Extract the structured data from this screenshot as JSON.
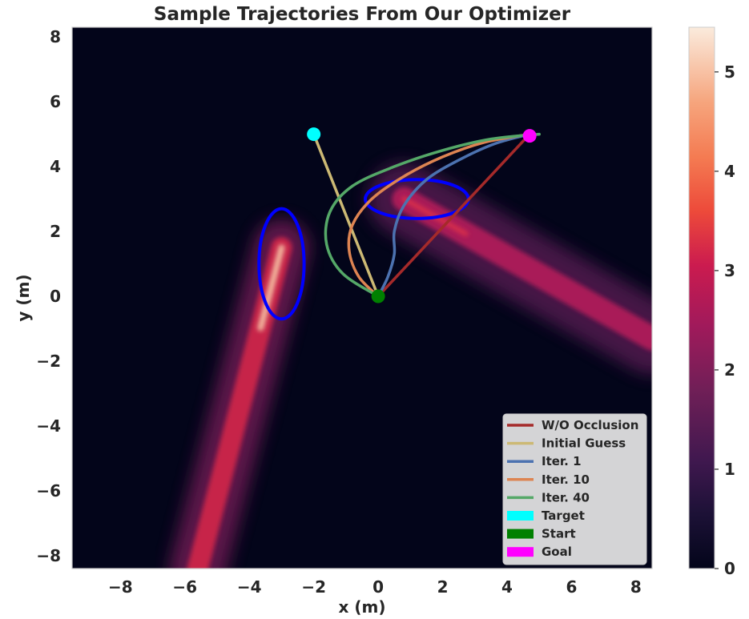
{
  "chart_data": {
    "type": "heatmap",
    "title": "Sample Trajectories From Our Optimizer",
    "xlabel": "x (m)",
    "ylabel": "y (m)",
    "xlim": [
      -9.5,
      8.5
    ],
    "ylim": [
      -8.4,
      8.3
    ],
    "xticks": [
      -8,
      -6,
      -4,
      -2,
      0,
      2,
      4,
      6,
      8
    ],
    "yticks": [
      -8,
      -6,
      -4,
      -2,
      0,
      2,
      4,
      6,
      8
    ],
    "grid": false,
    "legend_position": "lower-right",
    "colorbar": {
      "min": 0,
      "max": 5.45,
      "ticks": [
        0,
        1,
        2,
        3,
        4,
        5
      ],
      "colormap": "rocket"
    },
    "heatmap_regions": [
      {
        "name": "occlusion-band-1",
        "from": [
          -3.0,
          1.5
        ],
        "to": [
          -5.6,
          -8.4
        ],
        "peak": 5.2
      },
      {
        "name": "occlusion-band-2",
        "from": [
          0.8,
          3.0
        ],
        "to": [
          8.5,
          -1.3
        ],
        "peak": 3.0
      }
    ],
    "ellipses": [
      {
        "center": [
          -3.0,
          1.0
        ],
        "rx": 0.7,
        "ry": 1.7,
        "color": "#0000ff"
      },
      {
        "center": [
          1.2,
          3.0
        ],
        "rx": 1.6,
        "ry": 0.6,
        "color": "#0000ff"
      }
    ],
    "series": [
      {
        "name": "W/O Occlusion",
        "color": "#a52a2a",
        "x": [
          0,
          4.7
        ],
        "y": [
          0,
          5.0
        ]
      },
      {
        "name": "Initial Guess",
        "color": "#ccb974",
        "x": [
          -2.0,
          0
        ],
        "y": [
          5.0,
          0
        ]
      },
      {
        "name": "Iter. 1",
        "color": "#4c72b0",
        "x": [
          0,
          0.3,
          0.5,
          0.5,
          0.8,
          1.5,
          2.5,
          3.6,
          4.7
        ],
        "y": [
          0,
          0.6,
          1.3,
          2.0,
          2.8,
          3.6,
          4.2,
          4.7,
          5.0
        ]
      },
      {
        "name": "Iter. 10",
        "color": "#dd8452",
        "x": [
          0,
          -0.6,
          -0.9,
          -0.8,
          -0.2,
          0.8,
          2.0,
          3.3,
          4.7
        ],
        "y": [
          0,
          0.6,
          1.4,
          2.2,
          3.0,
          3.7,
          4.3,
          4.75,
          5.0
        ]
      },
      {
        "name": "Iter. 40",
        "color": "#55a868",
        "x": [
          0,
          -1.1,
          -1.6,
          -1.5,
          -0.8,
          0.5,
          2.0,
          3.5,
          5.0
        ],
        "y": [
          0,
          0.7,
          1.6,
          2.6,
          3.4,
          4.0,
          4.5,
          4.85,
          5.0
        ]
      }
    ],
    "points": [
      {
        "name": "Target",
        "x": -2.0,
        "y": 5.0,
        "color": "#00ffff"
      },
      {
        "name": "Start",
        "x": 0.0,
        "y": 0.0,
        "color": "#008000"
      },
      {
        "name": "Goal",
        "x": 4.7,
        "y": 4.95,
        "color": "#ff00ff"
      }
    ],
    "legend": [
      {
        "label": "W/O Occlusion",
        "kind": "line",
        "color": "#a52a2a"
      },
      {
        "label": "Initial Guess",
        "kind": "line",
        "color": "#ccb974"
      },
      {
        "label": "Iter. 1",
        "kind": "line",
        "color": "#4c72b0"
      },
      {
        "label": "Iter. 10",
        "kind": "line",
        "color": "#dd8452"
      },
      {
        "label": "Iter. 40",
        "kind": "line",
        "color": "#55a868"
      },
      {
        "label": "Target",
        "kind": "patch",
        "color": "#00ffff"
      },
      {
        "label": "Start",
        "kind": "patch",
        "color": "#008000"
      },
      {
        "label": "Goal",
        "kind": "patch",
        "color": "#ff00ff"
      }
    ]
  }
}
